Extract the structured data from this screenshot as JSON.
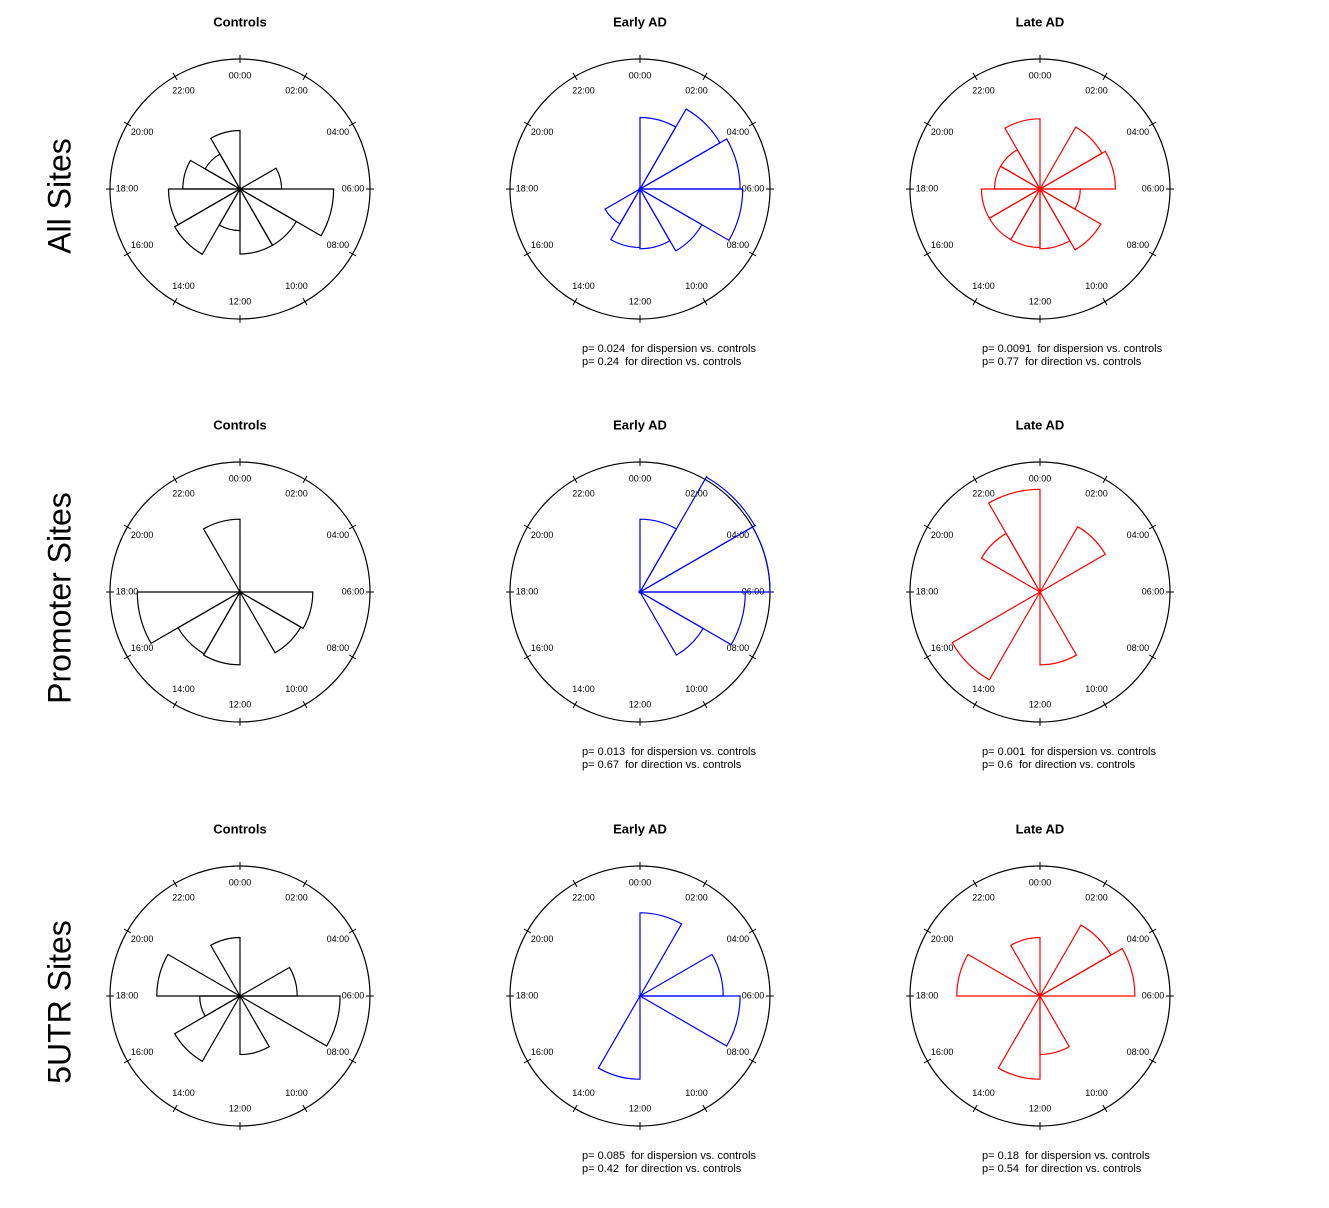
{
  "row_labels": [
    "All Sites",
    "Promoter Sites",
    "5UTR Sites"
  ],
  "chart_data": [
    {
      "type": "rose",
      "title": "Controls",
      "color": "#000000",
      "rlim": [
        0,
        100
      ],
      "categories": [
        "00:00",
        "02:00",
        "04:00",
        "06:00",
        "08:00",
        "10:00",
        "12:00",
        "14:00",
        "16:00",
        "18:00",
        "20:00",
        "22:00"
      ],
      "values": [
        0,
        0,
        32,
        72,
        50,
        50,
        32,
        58,
        55,
        44,
        31,
        45
      ]
    },
    {
      "type": "rose",
      "title": "Early AD",
      "color": "#0000ff",
      "rlim": [
        0,
        100
      ],
      "categories": [
        "00:00",
        "02:00",
        "04:00",
        "06:00",
        "08:00",
        "10:00",
        "12:00",
        "14:00",
        "16:00",
        "18:00",
        "20:00",
        "22:00"
      ],
      "values": [
        55,
        71,
        77,
        79,
        55,
        46,
        45,
        31,
        0,
        0,
        0,
        0
      ],
      "annotations": [
        "p= 0.024  for dispersion vs. controls",
        "p= 0.24  for direction vs. controls"
      ]
    },
    {
      "type": "rose",
      "title": "Late AD",
      "color": "#ff0000",
      "rlim": [
        0,
        100
      ],
      "categories": [
        "00:00",
        "02:00",
        "04:00",
        "06:00",
        "08:00",
        "10:00",
        "12:00",
        "14:00",
        "16:00",
        "18:00",
        "20:00",
        "22:00"
      ],
      "values": [
        0,
        55,
        58,
        31,
        54,
        46,
        45,
        45,
        45,
        35,
        35,
        54
      ],
      "annotations": [
        "p= 0.0091  for dispersion vs. controls",
        "p= 0.77  for direction vs. controls"
      ]
    },
    {
      "type": "rose",
      "title": "Controls",
      "color": "#000000",
      "rlim": [
        0,
        100
      ],
      "categories": [
        "00:00",
        "02:00",
        "04:00",
        "06:00",
        "08:00",
        "10:00",
        "12:00",
        "14:00",
        "16:00",
        "18:00",
        "20:00",
        "22:00"
      ],
      "values": [
        0,
        0,
        0,
        56,
        54,
        0,
        56,
        55,
        79,
        0,
        0,
        56
      ]
    },
    {
      "type": "rose",
      "title": "Early AD",
      "color": "#0000ff",
      "rlim": [
        0,
        100
      ],
      "categories": [
        "00:00",
        "02:00",
        "04:00",
        "06:00",
        "08:00",
        "10:00",
        "12:00",
        "14:00",
        "16:00",
        "18:00",
        "20:00",
        "22:00"
      ],
      "values": [
        56,
        102,
        100,
        81,
        56,
        0,
        0,
        0,
        0,
        0,
        0,
        0
      ],
      "annotations": [
        "p= 0.013  for dispersion vs. controls",
        "p= 0.67  for direction vs. controls"
      ]
    },
    {
      "type": "rose",
      "title": "Late AD",
      "color": "#ff0000",
      "rlim": [
        0,
        100
      ],
      "categories": [
        "00:00",
        "02:00",
        "04:00",
        "06:00",
        "08:00",
        "10:00",
        "12:00",
        "14:00",
        "16:00",
        "18:00",
        "20:00",
        "22:00"
      ],
      "values": [
        0,
        58,
        0,
        0,
        0,
        56,
        0,
        78,
        0,
        0,
        52,
        79
      ],
      "annotations": [
        "p= 0.001  for dispersion vs. controls",
        "p= 0.6  for direction vs. controls"
      ]
    },
    {
      "type": "rose",
      "title": "Controls",
      "color": "#000000",
      "rlim": [
        0,
        100
      ],
      "categories": [
        "00:00",
        "02:00",
        "04:00",
        "06:00",
        "08:00",
        "10:00",
        "12:00",
        "14:00",
        "16:00",
        "18:00",
        "20:00",
        "22:00"
      ],
      "values": [
        0,
        0,
        44,
        77,
        0,
        45,
        0,
        58,
        31,
        64,
        0,
        45
      ]
    },
    {
      "type": "rose",
      "title": "Early AD",
      "color": "#0000ff",
      "rlim": [
        0,
        100
      ],
      "categories": [
        "00:00",
        "02:00",
        "04:00",
        "06:00",
        "08:00",
        "10:00",
        "12:00",
        "14:00",
        "16:00",
        "18:00",
        "20:00",
        "22:00"
      ],
      "values": [
        64,
        0,
        64,
        77,
        0,
        0,
        64,
        0,
        0,
        0,
        0,
        0
      ],
      "annotations": [
        "p= 0.085  for dispersion vs. controls",
        "p= 0.42  for direction vs. controls"
      ]
    },
    {
      "type": "rose",
      "title": "Late AD",
      "color": "#ff0000",
      "rlim": [
        0,
        100
      ],
      "categories": [
        "00:00",
        "02:00",
        "04:00",
        "06:00",
        "08:00",
        "10:00",
        "12:00",
        "14:00",
        "16:00",
        "18:00",
        "20:00",
        "22:00"
      ],
      "values": [
        0,
        63,
        73,
        0,
        0,
        45,
        64,
        0,
        0,
        64,
        0,
        45
      ],
      "annotations": [
        "p= 0.18  for dispersion vs. controls",
        "p= 0.54  for direction vs. controls"
      ]
    }
  ]
}
